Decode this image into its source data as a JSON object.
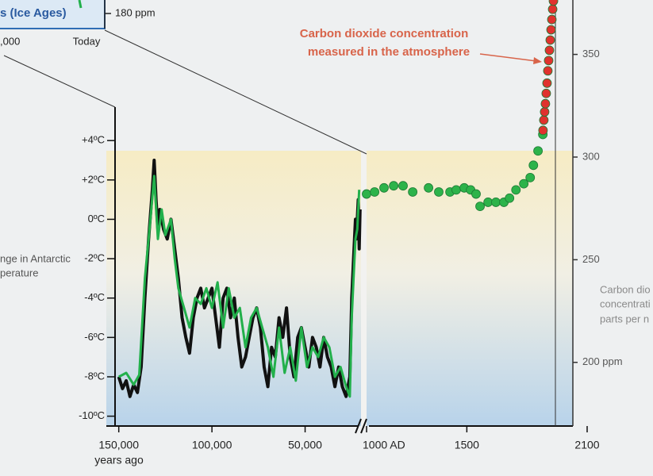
{
  "inset": {
    "title": "s (Ice Ages)",
    "ytick": "180 ppm",
    "xticks": [
      ",000",
      "Today"
    ]
  },
  "chart_data": [
    {
      "type": "line",
      "ylabel": [
        "nge in Antarctic",
        "perature"
      ],
      "xlabel": "years ago",
      "xlim": [
        152000,
        20000
      ],
      "xticks": [
        {
          "value": 150000,
          "label": "150,000"
        },
        {
          "value": 100000,
          "label": "100,000"
        },
        {
          "value": 50000,
          "label": "50,000"
        }
      ],
      "ylim": [
        -10.5,
        5.7
      ],
      "yticks": [
        {
          "value": 4,
          "label": "+4ºC"
        },
        {
          "value": 2,
          "label": "+2ºC"
        },
        {
          "value": 0,
          "label": "0ºC"
        },
        {
          "value": -2,
          "label": "-2ºC"
        },
        {
          "value": -4,
          "label": "-4ºC"
        },
        {
          "value": -6,
          "label": "-6ºC"
        },
        {
          "value": -8,
          "label": "-8ºC"
        },
        {
          "value": -10,
          "label": "-10ºC"
        }
      ],
      "series": [
        {
          "color": "#111111",
          "x": [
            150000,
            148000,
            146000,
            144000,
            142000,
            140000,
            138000,
            136000,
            134000,
            132000,
            131000,
            130000,
            129000,
            128000,
            126000,
            124000,
            122000,
            120000,
            118000,
            116000,
            114000,
            112000,
            110000,
            108000,
            106000,
            104000,
            102000,
            100000,
            98000,
            96000,
            94000,
            92000,
            90000,
            88000,
            86000,
            84000,
            82000,
            80000,
            78000,
            76000,
            74000,
            72000,
            70000,
            68000,
            66000,
            64000,
            62000,
            60000,
            58000,
            56000,
            54000,
            52000,
            50000,
            48000,
            46000,
            44000,
            42000,
            40000,
            38000,
            36000,
            34000,
            32000,
            30000,
            28000,
            26000,
            25000,
            24000,
            23000,
            22500,
            21500,
            21000,
            20500
          ],
          "values": [
            -8,
            -8.6,
            -8.2,
            -9,
            -8.4,
            -8.8,
            -7.5,
            -4,
            -1,
            1.5,
            3,
            1,
            -0.5,
            0.5,
            -0.5,
            -1,
            0,
            -1.5,
            -3,
            -5,
            -6,
            -6.8,
            -5,
            -4,
            -3.5,
            -4.5,
            -4,
            -3.5,
            -5,
            -6.5,
            -4,
            -3.5,
            -5,
            -4,
            -6,
            -7.5,
            -7,
            -6,
            -5,
            -4.5,
            -5.5,
            -7.5,
            -8.5,
            -6.5,
            -7,
            -5,
            -6,
            -4.5,
            -7,
            -8,
            -6,
            -5.5,
            -6.5,
            -7.5,
            -6,
            -6.5,
            -7.5,
            -6,
            -7,
            -7.5,
            -8.5,
            -7.5,
            -8.5,
            -9,
            -8,
            -4,
            -2,
            0,
            -1,
            1,
            -1.5,
            0.5
          ]
        },
        {
          "color": "#22b04b",
          "x": [
            150000,
            146000,
            142000,
            139000,
            136000,
            133000,
            131000,
            129000,
            127000,
            125000,
            122000,
            120000,
            118000,
            115000,
            112000,
            109000,
            106000,
            103000,
            100000,
            97000,
            94000,
            91000,
            88000,
            85000,
            82000,
            79000,
            76000,
            73000,
            70000,
            67000,
            64000,
            61000,
            58000,
            55000,
            52000,
            49000,
            46000,
            43000,
            40000,
            37000,
            34000,
            31000,
            28000,
            26000,
            25000,
            24000,
            23000,
            22000,
            21500,
            21000
          ],
          "values": [
            -8,
            -7.8,
            -8.4,
            -7.9,
            -3,
            0,
            2.2,
            -1,
            0.5,
            -0.8,
            0,
            -2,
            -3.5,
            -4.5,
            -5.5,
            -4,
            -4.3,
            -3.5,
            -4.5,
            -3.2,
            -5.5,
            -3.5,
            -5,
            -4.5,
            -6.5,
            -5,
            -4.5,
            -5.5,
            -6.5,
            -8,
            -5.5,
            -7.8,
            -6.5,
            -8.2,
            -5.5,
            -7.5,
            -6.5,
            -7,
            -6,
            -6.5,
            -8,
            -7.5,
            -8.5,
            -9,
            -5,
            -3,
            -1,
            -0.5,
            0.5,
            1.5
          ]
        }
      ]
    },
    {
      "type": "scatter",
      "annotation": [
        "Carbon dioxide concentration",
        "measured in the atmosphere"
      ],
      "ylabel": [
        "Carbon dio",
        "concentrati",
        "parts per n"
      ],
      "xlim": [
        1000,
        2100
      ],
      "xticks": [
        {
          "value": 1000,
          "label": "1000 AD"
        },
        1500,
        2100
      ],
      "ylim": [
        169,
        376.5
      ],
      "yticks": [
        {
          "value": 200,
          "label": "200 ppm"
        },
        250,
        300,
        350
      ],
      "series": [
        {
          "color": "#2db34a",
          "x": [
            1000,
            1040,
            1087,
            1135,
            1182,
            1230,
            1309,
            1360,
            1416,
            1447,
            1487,
            1519,
            1546,
            1566,
            1606,
            1645,
            1685,
            1713,
            1745,
            1784,
            1816,
            1832,
            1855,
            1879
          ],
          "values": [
            282,
            283,
            285,
            286,
            286,
            283,
            285,
            283,
            283,
            284,
            285,
            284,
            282,
            276,
            278,
            278,
            278,
            280,
            284,
            287,
            290,
            296,
            303,
            311
          ]
        },
        {
          "color": "#e0322e",
          "x": [
            1880,
            1884,
            1888,
            1892,
            1896,
            1900,
            1904,
            1908,
            1912,
            1916,
            1920,
            1924,
            1928,
            1932
          ],
          "values": [
            313,
            318,
            322,
            326,
            331,
            336,
            342,
            347,
            352,
            357,
            362,
            367,
            372,
            376
          ]
        }
      ]
    }
  ]
}
